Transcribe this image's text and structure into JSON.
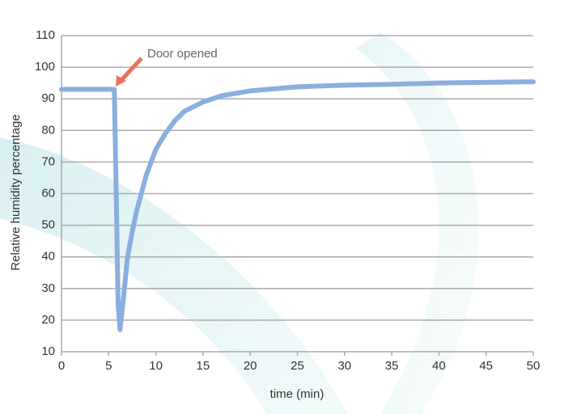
{
  "chart_data": {
    "type": "line",
    "annotation": "Door opened",
    "xlabel": "time (min)",
    "ylabel": "Relative humidity percentage",
    "x": [
      0,
      5.6,
      5.8,
      6.0,
      6.2,
      6.5,
      7,
      7.5,
      8,
      9,
      10,
      11,
      12,
      13,
      15,
      17,
      20,
      25,
      30,
      35,
      40,
      45,
      50
    ],
    "series": [
      {
        "color": "#8aaedf",
        "values": [
          93,
          93,
          60,
          25,
          17,
          25,
          40,
          48,
          55,
          66,
          74,
          79,
          83,
          86,
          89,
          91,
          92.5,
          93.8,
          94.3,
          94.6,
          95,
          95.2,
          95.4
        ]
      }
    ],
    "xlim": [
      0,
      50
    ],
    "xticks": [
      0,
      5,
      10,
      15,
      20,
      25,
      30,
      35,
      40,
      45,
      50
    ],
    "ylim": [
      10,
      110
    ],
    "yticks": [
      10,
      20,
      30,
      40,
      50,
      60,
      70,
      80,
      90,
      100,
      110
    ],
    "grid": true
  }
}
